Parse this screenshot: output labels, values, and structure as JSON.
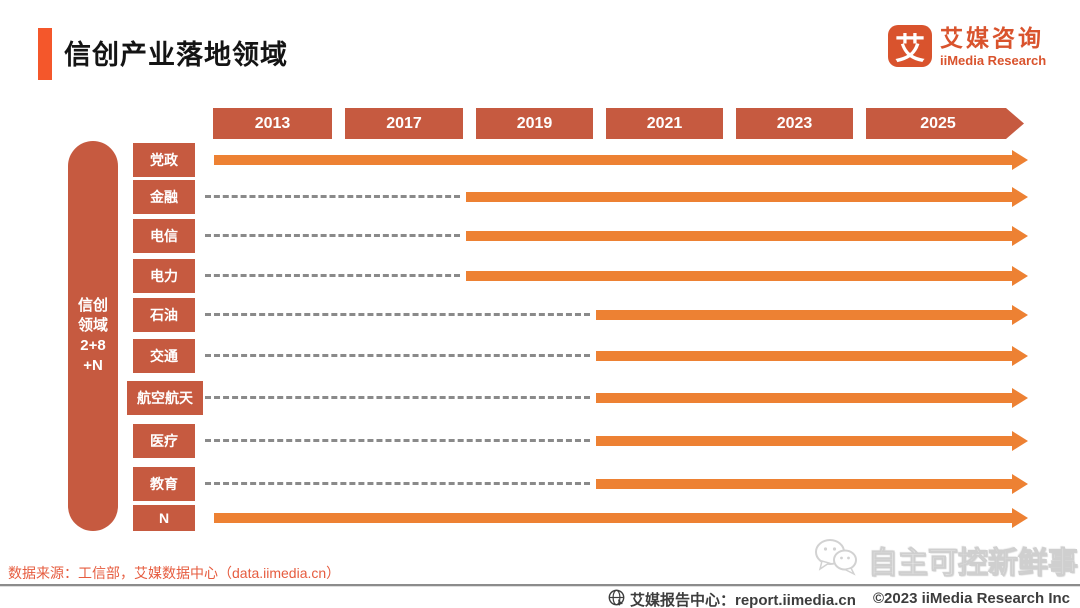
{
  "header": {
    "title": "信创产业落地领域",
    "logo": {
      "glyph": "艾",
      "name_cn": "艾媒咨询",
      "name_en": "iiMedia Research"
    }
  },
  "chart_data": {
    "type": "bar",
    "subtype": "timeline",
    "title": "信创产业落地领域",
    "x_ticks": [
      "2013",
      "2017",
      "2019",
      "2021",
      "2023",
      "2025"
    ],
    "x_ticks_note": "last tick 2025 drawn as forward-pointing arrow",
    "categories": [
      "党政",
      "金融",
      "电信",
      "电力",
      "石油",
      "交通",
      "航空航天",
      "医疗",
      "教育",
      "N"
    ],
    "series": [
      {
        "name": "solid-arrow-start-year",
        "start_year": [
          2013,
          2019,
          2019,
          2019,
          2021,
          2021,
          2021,
          2021,
          2021,
          2013
        ],
        "arrow_extends_beyond": 2025
      }
    ],
    "legend_position": "none",
    "grid": false
  },
  "sidebar": {
    "lines": [
      "信创",
      "领域",
      "2+8",
      "+N"
    ]
  },
  "footer": {
    "source": "数据来源：工信部，艾媒数据中心（data.iimedia.cn）",
    "report_center": "艾媒报告中心：report.iimedia.cn",
    "copyright": "©2023  iiMedia Research  Inc",
    "watermark": "自主可控新鲜事"
  },
  "colors": {
    "box_red": "#C65A40",
    "arrow_orange": "#ED8133",
    "title_accent": "#F4572B",
    "logo_orange": "#D9532D",
    "dash_gray": "#8A8A8A",
    "source_text": "#E65C3F"
  }
}
